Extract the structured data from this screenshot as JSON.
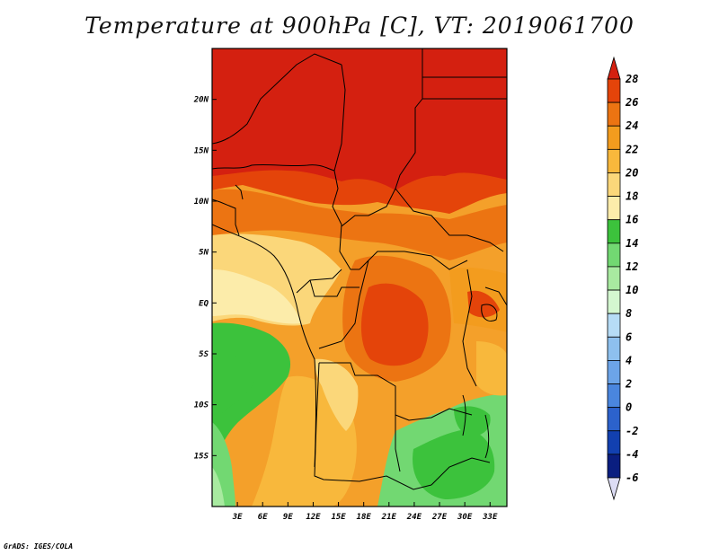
{
  "title": "Temperature at 900hPa [C], VT: 2019061700",
  "credit": "GrADS: IGES/COLA",
  "map": {
    "lon_range": [
      0,
      35
    ],
    "lat_range": [
      -20,
      25
    ],
    "lon_ticks": [
      {
        "value": 3,
        "label": "3E"
      },
      {
        "value": 6,
        "label": "6E"
      },
      {
        "value": 9,
        "label": "9E"
      },
      {
        "value": 12,
        "label": "12E"
      },
      {
        "value": 15,
        "label": "15E"
      },
      {
        "value": 18,
        "label": "18E"
      },
      {
        "value": 21,
        "label": "21E"
      },
      {
        "value": 24,
        "label": "24E"
      },
      {
        "value": 27,
        "label": "27E"
      },
      {
        "value": 30,
        "label": "30E"
      },
      {
        "value": 33,
        "label": "33E"
      }
    ],
    "lat_ticks": [
      {
        "value": 20,
        "label": "20N"
      },
      {
        "value": 15,
        "label": "15N"
      },
      {
        "value": 10,
        "label": "10N"
      },
      {
        "value": 5,
        "label": "5N"
      },
      {
        "value": 0,
        "label": "EQ"
      },
      {
        "value": -5,
        "label": "5S"
      },
      {
        "value": -10,
        "label": "10S"
      },
      {
        "value": -15,
        "label": "15S"
      }
    ]
  },
  "colorbar": {
    "levels": [
      28,
      26,
      24,
      22,
      20,
      18,
      16,
      14,
      12,
      10,
      8,
      6,
      4,
      2,
      0,
      -2,
      -4,
      -6
    ],
    "colors": [
      "#d42010",
      "#e4440a",
      "#ec7412",
      "#f39c1e",
      "#f8b83c",
      "#fbd77a",
      "#fcecaa",
      "#3cc23c",
      "#72d872",
      "#a8eaa0",
      "#d4f7d0",
      "#b6dcf6",
      "#8ec0ee",
      "#6ca4e8",
      "#4a86de",
      "#2c62cc",
      "#1240b0",
      "#0a1e80",
      "#0a0c5a"
    ],
    "min_arrow_color": "#dcdcf4",
    "max_arrow_color": "#d42010"
  }
}
